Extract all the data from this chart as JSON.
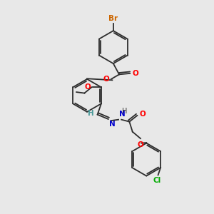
{
  "background_color": "#e8e8e8",
  "bond_color": "#2d2d2d",
  "atom_colors": {
    "O": "#ff0000",
    "N": "#0000cc",
    "Br": "#cc6600",
    "Cl": "#00aa00",
    "H": "#4a9a9a",
    "C": "#2d2d2d"
  },
  "figsize": [
    3.0,
    3.0
  ],
  "dpi": 100
}
